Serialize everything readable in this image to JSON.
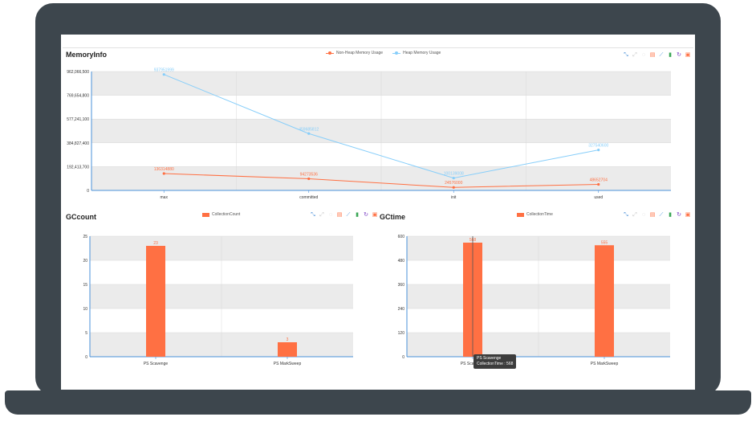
{
  "colors": {
    "frame": "#3d464d",
    "orange": "#ff7043",
    "blue": "#87cefa",
    "grid_band": "#ebebeb",
    "axis": "#4a90d9"
  },
  "toolbox_icons": [
    "zoom-icon",
    "zoom-reset-icon",
    "restore-circle-icon",
    "data-view-icon",
    "line-chart-icon",
    "bar-chart-icon",
    "refresh-icon",
    "save-image-icon"
  ],
  "tooltip": {
    "line1": "PS Scavenge",
    "line2": "CollectionTime : 568"
  },
  "chart_data": [
    {
      "type": "line",
      "title": "MemoryInfo",
      "categories": [
        "max",
        "committed",
        "init",
        "used"
      ],
      "ylim": [
        0,
        962066500
      ],
      "yticks": [
        "962,066,500",
        "769,654,800",
        "577,241,100",
        "384,827,400",
        "192,413,700",
        "0"
      ],
      "grid": true,
      "legend": "top-center",
      "series": [
        {
          "name": "Non-Heap Memory Usage",
          "color": "#ff7043",
          "values": [
            136314880,
            94273536,
            24576000,
            48652704
          ],
          "labels": [
            "136314880",
            "94273536",
            "24576000",
            "48652704"
          ]
        },
        {
          "name": "Heap Memory Usage",
          "color": "#87cefa",
          "values": [
            937951999,
            459685812,
            100139008,
            327540600
          ],
          "labels": [
            "937951999",
            "459685812",
            "100139008",
            "327540600"
          ]
        }
      ]
    },
    {
      "type": "bar",
      "title": "GCcount",
      "categories": [
        "PS Scavenge",
        "PS MarkSweep"
      ],
      "ylim": [
        0,
        25
      ],
      "yticks": [
        "25",
        "20",
        "15",
        "10",
        "5",
        "0"
      ],
      "grid": true,
      "legend": "top-center",
      "series": [
        {
          "name": "CollectionCount",
          "color": "#ff7043",
          "values": [
            23,
            3
          ],
          "labels": [
            "23",
            "3"
          ]
        }
      ]
    },
    {
      "type": "bar",
      "title": "GCtime",
      "categories": [
        "PS Scavenge",
        "PS MarkSweep"
      ],
      "ylim": [
        0,
        600
      ],
      "yticks": [
        "600",
        "480",
        "360",
        "240",
        "120",
        "0"
      ],
      "grid": true,
      "legend": "top-center",
      "series": [
        {
          "name": "CollectionTime",
          "color": "#ff7043",
          "values": [
            568,
            555
          ],
          "labels": [
            "568",
            "555"
          ]
        }
      ]
    }
  ]
}
